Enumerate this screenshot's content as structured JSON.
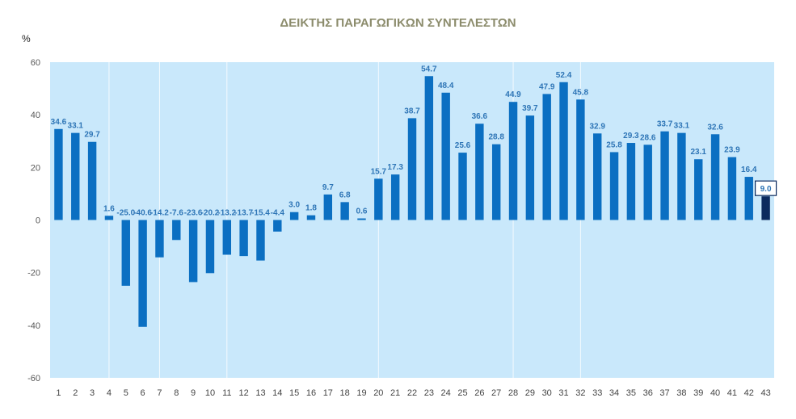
{
  "chart_data": {
    "type": "bar",
    "title": "ΔΕΙΚΤΗΣ ΠΑΡΑΓΩΓΙΚΩΝ ΣΥΝΤΕΛΕΣΤΩΝ",
    "ylabel": "%",
    "xlabel": "",
    "ylim": [
      -60,
      60
    ],
    "yticks": [
      60,
      40,
      20,
      0,
      -20,
      -40,
      -60
    ],
    "grid": false,
    "categories": [
      "1",
      "2",
      "3",
      "4",
      "5",
      "6",
      "7",
      "8",
      "9",
      "10",
      "11",
      "12",
      "13",
      "14",
      "15",
      "16",
      "17",
      "18",
      "19",
      "20",
      "21",
      "22",
      "23",
      "24",
      "25",
      "26",
      "27",
      "28",
      "29",
      "30",
      "31",
      "32",
      "33",
      "34",
      "35",
      "36",
      "37",
      "38",
      "39",
      "40",
      "41",
      "42",
      "43"
    ],
    "values": [
      34.6,
      33.1,
      29.7,
      1.6,
      -25.0,
      -40.6,
      -14.2,
      -7.6,
      -23.6,
      -20.2,
      -13.2,
      -13.7,
      -15.4,
      -4.4,
      3.0,
      1.8,
      9.7,
      6.8,
      0.6,
      15.7,
      17.3,
      38.7,
      54.7,
      48.4,
      25.6,
      36.6,
      28.8,
      44.9,
      39.7,
      47.9,
      52.4,
      45.8,
      32.9,
      25.8,
      29.3,
      28.6,
      33.7,
      33.1,
      23.1,
      32.6,
      23.9,
      16.4,
      9.0
    ],
    "data_labels": [
      "34.6",
      "33.1",
      "29.7",
      "1.6",
      "-25.0",
      "-40.6",
      "-14.2",
      "-7.6",
      "-23.6",
      "-20.2",
      "-13.2",
      "-13.7",
      "-15.4",
      "-4.4",
      "3.0",
      "1.8",
      "9.7",
      "6.8",
      "0.6",
      "15.7",
      "17.3",
      "38.7",
      "54.7",
      "48.4",
      "25.6",
      "36.6",
      "28.8",
      "44.9",
      "39.7",
      "47.9",
      "52.4",
      "45.8",
      "32.9",
      "25.8",
      "29.3",
      "28.6",
      "33.7",
      "33.1",
      "23.1",
      "32.6",
      "23.9",
      "16.4",
      "9.0"
    ],
    "highlight_index": 42,
    "colors": {
      "plot_bg": "#c9e8fb",
      "bar": "#0b6fc2",
      "bar_highlight": "#0b2a5e",
      "label": "#2e75b6",
      "divider": "#ffffff"
    }
  }
}
